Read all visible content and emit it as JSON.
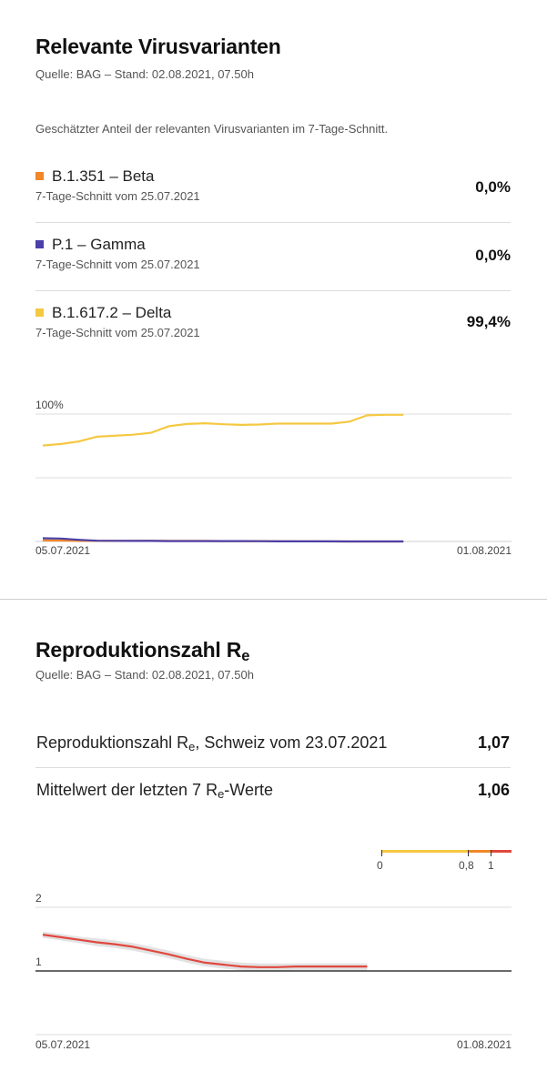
{
  "variants_section": {
    "title": "Relevante Virusvarianten",
    "source": "Quelle: BAG – Stand: 02.08.2021, 07.50h",
    "description": "Geschätzter Anteil der relevanten Virusvarianten im 7-Tage-Schnitt.",
    "items": [
      {
        "name": "B.1.351 – Beta",
        "sub": "7-Tage-Schnitt vom 25.07.2021",
        "value": "0,0%",
        "color": "#f0872a"
      },
      {
        "name": "P.1 – Gamma",
        "sub": "7-Tage-Schnitt vom 25.07.2021",
        "value": "0,0%",
        "color": "#4b3fa8"
      },
      {
        "name": "B.1.617.2 – Delta",
        "sub": "7-Tage-Schnitt vom 25.07.2021",
        "value": "99,4%",
        "color": "#f5c842"
      }
    ]
  },
  "re_section": {
    "title_main": "Reproduktionszahl R",
    "title_sub": "e",
    "source": "Quelle: BAG – Stand: 02.08.2021, 07.50h",
    "rows": [
      {
        "label_pre": "Reproduktionszahl R",
        "label_sub": "e",
        "label_post": ", Schweiz vom 23.07.2021",
        "value": "1,07"
      },
      {
        "label_pre": "Mittelwert der letzten 7 R",
        "label_sub": "e",
        "label_post": "-Werte",
        "value": "1,06"
      }
    ],
    "scale": {
      "labels": [
        "0",
        "0,8",
        "1"
      ],
      "colors": {
        "low": "#f5c842",
        "mid": "#f0872a",
        "high": "#e0483f"
      }
    }
  },
  "chart_data": [
    {
      "type": "line",
      "title": "",
      "xlabel": "",
      "ylabel": "",
      "x_tick_labels": [
        "05.07.2021",
        "01.08.2021"
      ],
      "y_tick_labels": [
        "100%"
      ],
      "ylim": [
        0,
        100
      ],
      "x": [
        "05.07.2021",
        "06.07.2021",
        "07.07.2021",
        "08.07.2021",
        "09.07.2021",
        "10.07.2021",
        "11.07.2021",
        "12.07.2021",
        "13.07.2021",
        "14.07.2021",
        "15.07.2021",
        "16.07.2021",
        "17.07.2021",
        "18.07.2021",
        "19.07.2021",
        "20.07.2021",
        "21.07.2021",
        "22.07.2021",
        "23.07.2021",
        "24.07.2021",
        "25.07.2021"
      ],
      "series": [
        {
          "color": "#f5c842",
          "values": [
            75.3,
            76.5,
            78.5,
            82.2,
            83.0,
            83.8,
            85.3,
            90.5,
            92.2,
            92.8,
            92.0,
            91.5,
            91.8,
            92.5,
            92.5,
            92.5,
            92.5,
            94.0,
            99.0,
            99.4,
            99.4
          ]
        },
        {
          "color": "#4b3fa8",
          "values": [
            2.5,
            2.3,
            1.3,
            0.6,
            0.5,
            0.4,
            0.4,
            0.3,
            0.3,
            0.3,
            0.3,
            0.3,
            0.2,
            0.1,
            0.1,
            0.1,
            0.1,
            0.0,
            0.0,
            0.0,
            0.0
          ]
        },
        {
          "color": "#f0872a",
          "values": [
            0.8,
            0.7,
            0.5,
            0.4,
            0.4,
            0.4,
            0.6,
            0.5,
            0.4,
            0.4,
            0.3,
            0.3,
            0.3,
            0.2,
            0.1,
            0.1,
            0.0,
            0.0,
            0.0,
            0.0,
            0.0
          ]
        }
      ]
    },
    {
      "type": "line",
      "title": "",
      "xlabel": "",
      "ylabel": "",
      "x_tick_labels": [
        "05.07.2021",
        "01.08.2021"
      ],
      "y_tick_labels": [
        "2",
        "1"
      ],
      "ylim": [
        0,
        2
      ],
      "reference_line": 1,
      "x": [
        "05.07.2021",
        "06.07.2021",
        "07.07.2021",
        "08.07.2021",
        "09.07.2021",
        "10.07.2021",
        "11.07.2021",
        "12.07.2021",
        "13.07.2021",
        "14.07.2021",
        "15.07.2021",
        "16.07.2021",
        "17.07.2021",
        "18.07.2021",
        "19.07.2021",
        "20.07.2021",
        "21.07.2021",
        "22.07.2021",
        "23.07.2021"
      ],
      "series": [
        {
          "color": "#e0483f",
          "values": [
            1.57,
            1.53,
            1.49,
            1.45,
            1.42,
            1.38,
            1.32,
            1.26,
            1.19,
            1.13,
            1.1,
            1.07,
            1.06,
            1.06,
            1.07,
            1.07,
            1.07,
            1.07,
            1.07
          ]
        },
        {
          "color": "#d8d8d8",
          "values": [
            1.62,
            1.58,
            1.54,
            1.51,
            1.48,
            1.44,
            1.38,
            1.32,
            1.25,
            1.19,
            1.16,
            1.13,
            1.12,
            1.12,
            1.12,
            1.12,
            1.12,
            1.12,
            1.12
          ]
        },
        {
          "color": "#d8d8d8",
          "values": [
            1.52,
            1.48,
            1.44,
            1.39,
            1.36,
            1.32,
            1.26,
            1.2,
            1.13,
            1.07,
            1.04,
            1.01,
            1.0,
            1.0,
            1.01,
            1.01,
            1.01,
            1.01,
            1.01
          ]
        }
      ]
    }
  ]
}
